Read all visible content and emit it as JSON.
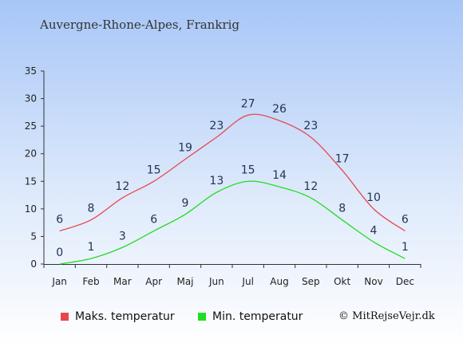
{
  "chart_title": "Auvergne-Rhone-Alpes, Frankrig",
  "credit": "© MitRejseVejr.dk",
  "chart_data": {
    "type": "line",
    "categories": [
      "Jan",
      "Feb",
      "Mar",
      "Apr",
      "Maj",
      "Jun",
      "Jul",
      "Aug",
      "Sep",
      "Okt",
      "Nov",
      "Dec"
    ],
    "ylim": [
      0,
      35
    ],
    "y_ticks": [
      "0",
      "5",
      "10",
      "15",
      "20",
      "25",
      "30",
      "35"
    ],
    "grid": false,
    "legend_position": "bottom",
    "series": [
      {
        "name": "Maks. temperatur",
        "color": "#e8484d",
        "values": [
          6,
          8,
          12,
          15,
          19,
          23,
          27,
          26,
          23,
          17,
          10,
          6
        ]
      },
      {
        "name": "Min. temperatur",
        "color": "#22dd22",
        "values": [
          0,
          1,
          3,
          6,
          9,
          13,
          15,
          14,
          12,
          8,
          4,
          1
        ]
      }
    ]
  }
}
